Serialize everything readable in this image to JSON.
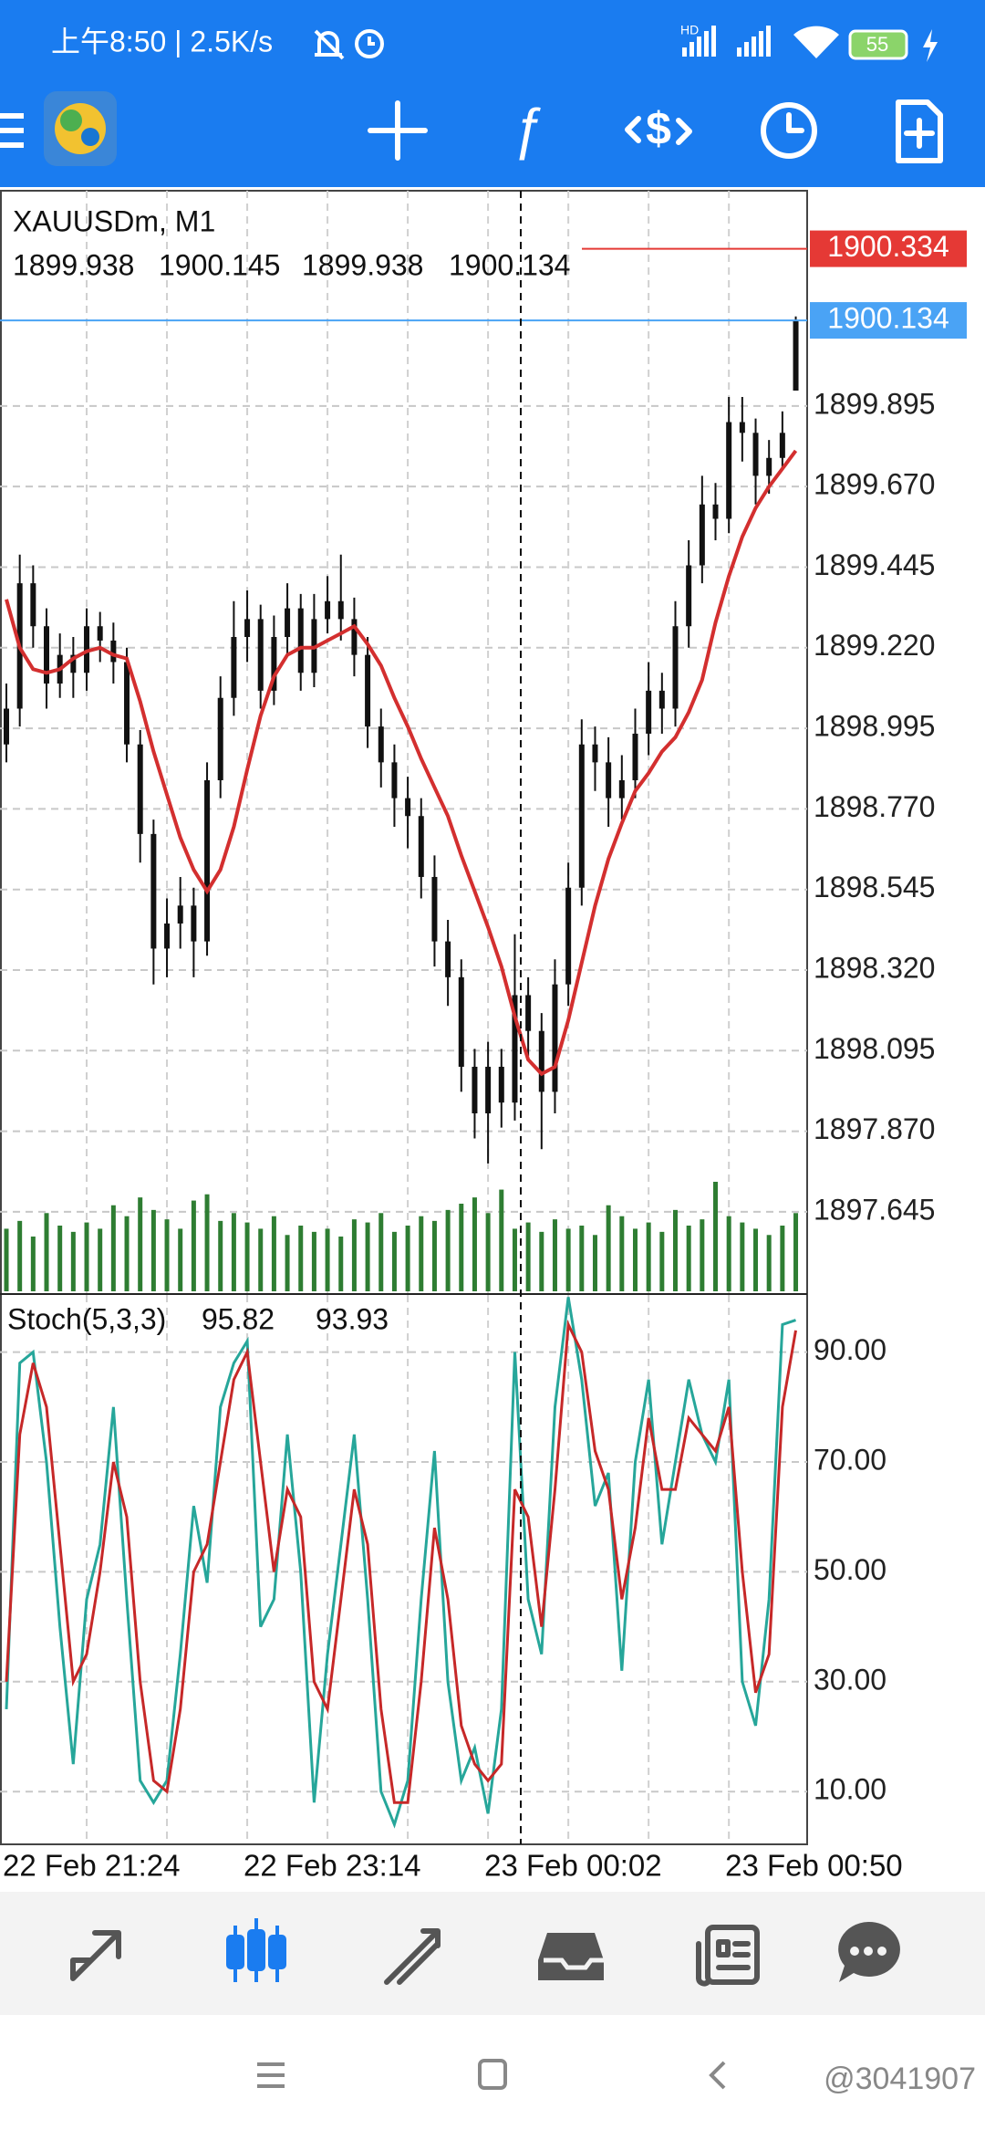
{
  "status_bar": {
    "time_speed": "上午8:50 | 2.5K/s",
    "network": "HD",
    "battery": "55"
  },
  "watermark": "@3041907",
  "chart_data": [
    {
      "type": "candlestick",
      "symbol": "XAUUSDm, M1",
      "categories": [
        "22 Feb 21:24",
        null,
        null,
        null,
        null,
        null,
        null,
        null,
        null,
        null,
        null,
        null,
        null,
        null,
        null,
        null,
        null,
        null,
        "22 Feb 23:14",
        null,
        null,
        null,
        null,
        null,
        null,
        null,
        null,
        null,
        null,
        null,
        null,
        null,
        null,
        null,
        null,
        null,
        "23 Feb 00:02",
        null,
        null,
        null,
        null,
        null,
        null,
        null,
        null,
        null,
        null,
        null,
        null,
        null,
        null,
        null,
        null,
        null,
        "23 Feb 00:50",
        null,
        null,
        null,
        null,
        null
      ],
      "open": [
        1898.95,
        1899.05,
        1899.4,
        1899.28,
        1899.12,
        1899.2,
        1899.15,
        1899.28,
        1899.24,
        1899.18,
        1898.95,
        1898.7,
        1898.38,
        1898.45,
        1898.5,
        1898.4,
        1898.85,
        1899.08,
        1899.25,
        1899.3,
        1899.1,
        1899.25,
        1899.33,
        1899.15,
        1899.3,
        1899.35,
        1899.3,
        1899.2,
        1899.0,
        1898.9,
        1898.8,
        1898.75,
        1898.58,
        1898.4,
        1898.3,
        1898.05,
        1897.92,
        1898.05,
        1897.95,
        1898.25,
        1898.15,
        1897.98,
        1898.28,
        1898.55,
        1898.95,
        1898.9,
        1898.8,
        1898.85,
        1898.98,
        1899.1,
        1899.05,
        1899.28,
        1899.45,
        1899.62,
        1899.58,
        1899.85,
        1899.82,
        1899.7,
        1899.75,
        1899.938
      ],
      "high": [
        1899.12,
        1899.48,
        1899.45,
        1899.33,
        1899.26,
        1899.25,
        1899.33,
        1899.32,
        1899.29,
        1899.22,
        1898.99,
        1898.74,
        1898.52,
        1898.58,
        1898.55,
        1898.9,
        1899.14,
        1899.35,
        1899.38,
        1899.34,
        1899.31,
        1899.4,
        1899.37,
        1899.37,
        1899.42,
        1899.48,
        1899.36,
        1899.25,
        1899.05,
        1898.95,
        1898.86,
        1898.8,
        1898.64,
        1898.46,
        1898.35,
        1898.1,
        1898.12,
        1898.1,
        1898.42,
        1898.3,
        1898.2,
        1898.35,
        1898.62,
        1899.02,
        1899.0,
        1898.97,
        1898.92,
        1899.05,
        1899.18,
        1899.15,
        1899.35,
        1899.52,
        1899.7,
        1899.68,
        1899.92,
        1899.92,
        1899.86,
        1899.8,
        1899.88,
        1900.145
      ],
      "low": [
        1898.9,
        1899.0,
        1899.22,
        1899.05,
        1899.08,
        1899.08,
        1899.1,
        1899.18,
        1899.12,
        1898.9,
        1898.62,
        1898.28,
        1898.3,
        1898.38,
        1898.3,
        1898.36,
        1898.8,
        1899.03,
        1899.18,
        1899.05,
        1899.06,
        1899.2,
        1899.1,
        1899.11,
        1899.26,
        1899.24,
        1899.14,
        1898.94,
        1898.83,
        1898.72,
        1898.66,
        1898.52,
        1898.33,
        1898.22,
        1897.98,
        1897.85,
        1897.78,
        1897.88,
        1897.9,
        1898.08,
        1897.82,
        1897.92,
        1898.22,
        1898.5,
        1898.82,
        1898.72,
        1898.74,
        1898.8,
        1898.92,
        1898.98,
        1899.0,
        1899.22,
        1899.4,
        1899.52,
        1899.54,
        1899.74,
        1899.62,
        1899.65,
        1899.72,
        1899.938
      ],
      "close": [
        1899.05,
        1899.4,
        1899.28,
        1899.12,
        1899.2,
        1899.15,
        1899.28,
        1899.24,
        1899.18,
        1898.95,
        1898.7,
        1898.38,
        1898.45,
        1898.5,
        1898.4,
        1898.85,
        1899.08,
        1899.25,
        1899.3,
        1899.1,
        1899.25,
        1899.33,
        1899.15,
        1899.3,
        1899.35,
        1899.3,
        1899.2,
        1899.0,
        1898.9,
        1898.8,
        1898.75,
        1898.58,
        1898.4,
        1898.3,
        1898.05,
        1897.92,
        1898.05,
        1897.95,
        1898.25,
        1898.15,
        1897.98,
        1898.28,
        1898.55,
        1898.95,
        1898.9,
        1898.8,
        1898.85,
        1898.98,
        1899.1,
        1899.05,
        1899.28,
        1899.45,
        1899.62,
        1899.58,
        1899.85,
        1899.82,
        1899.7,
        1899.75,
        1899.82,
        1900.134
      ],
      "candle_color": "#111111",
      "ma_values": [
        1899.355,
        1899.22,
        1899.16,
        1899.15,
        1899.16,
        1899.19,
        1899.21,
        1899.22,
        1899.2,
        1899.19,
        1899.07,
        1898.93,
        1898.81,
        1898.69,
        1898.6,
        1898.54,
        1898.6,
        1898.72,
        1898.88,
        1899.03,
        1899.14,
        1899.2,
        1899.22,
        1899.22,
        1899.24,
        1899.26,
        1899.28,
        1899.23,
        1899.17,
        1899.08,
        1899.0,
        1898.91,
        1898.83,
        1898.75,
        1898.64,
        1898.54,
        1898.44,
        1898.33,
        1898.19,
        1898.07,
        1898.03,
        1898.05,
        1898.18,
        1898.34,
        1898.5,
        1898.63,
        1898.73,
        1898.82,
        1898.87,
        1898.93,
        1898.97,
        1899.04,
        1899.13,
        1899.29,
        1899.42,
        1899.53,
        1899.61,
        1899.67,
        1899.72,
        1899.77
      ],
      "ma_color": "#d32f2f",
      "volumes": [
        40,
        45,
        35,
        50,
        42,
        38,
        44,
        40,
        55,
        48,
        60,
        52,
        46,
        40,
        58,
        62,
        45,
        50,
        44,
        40,
        48,
        36,
        42,
        38,
        40,
        35,
        46,
        44,
        50,
        38,
        42,
        48,
        45,
        52,
        56,
        60,
        50,
        65,
        40,
        44,
        38,
        46,
        40,
        42,
        36,
        55,
        48,
        40,
        44,
        38,
        52,
        42,
        46,
        70,
        48,
        44,
        40,
        36,
        42,
        50
      ],
      "volume_color": "#2e7d32",
      "ask": 1900.334,
      "ask_color": "#e53935",
      "bid_color": "#4aa3f5",
      "ylim": [
        1897.418,
        1900.496
      ],
      "yticks": [
        1899.895,
        {
          "value": 1899.67,
          "label": "1899.670"
        },
        1899.445,
        {
          "value": 1899.22,
          "label": "1899.220"
        },
        1898.995,
        {
          "value": 1898.77,
          "label": "1898.770"
        },
        1898.545,
        {
          "value": 1898.32,
          "label": "1898.320"
        },
        1898.095,
        {
          "value": 1897.87,
          "label": "1897.870"
        },
        1897.645
      ],
      "grid": true
    },
    {
      "type": "line",
      "title": "Stoch(5,3,3)",
      "series": [
        {
          "color": "#26a69a",
          "values": [
            25,
            88,
            90,
            70,
            40,
            15,
            45,
            55,
            80,
            45,
            12,
            8,
            12,
            35,
            62,
            48,
            80,
            88,
            92,
            40,
            45,
            75,
            50,
            8,
            35,
            55,
            75,
            45,
            10,
            4,
            12,
            45,
            72,
            30,
            12,
            18,
            6,
            25,
            90,
            45,
            35,
            80,
            100,
            85,
            62,
            68,
            32,
            70,
            85,
            55,
            70,
            85,
            75,
            70,
            85,
            30,
            22,
            45,
            95,
            95.82
          ]
        },
        {
          "color": "#c62828",
          "values": [
            30,
            75,
            88,
            80,
            55,
            30,
            35,
            50,
            70,
            60,
            30,
            12,
            10,
            25,
            50,
            55,
            70,
            85,
            90,
            70,
            50,
            65,
            60,
            30,
            25,
            45,
            65,
            55,
            25,
            8,
            8,
            30,
            58,
            45,
            22,
            15,
            12,
            15,
            65,
            60,
            40,
            65,
            95,
            90,
            72,
            65,
            45,
            58,
            78,
            65,
            65,
            78,
            75,
            72,
            80,
            50,
            28,
            35,
            80,
            93.93
          ]
        }
      ],
      "ylim": [
        0.4,
        100.4
      ],
      "yticks": [
        {
          "value": 90,
          "label": "90.00"
        },
        {
          "value": 70,
          "label": "70.00"
        },
        {
          "value": 50,
          "label": "50.00"
        },
        {
          "value": 30,
          "label": "30.00"
        },
        {
          "value": 10,
          "label": "10.00"
        }
      ],
      "grid": true
    }
  ]
}
